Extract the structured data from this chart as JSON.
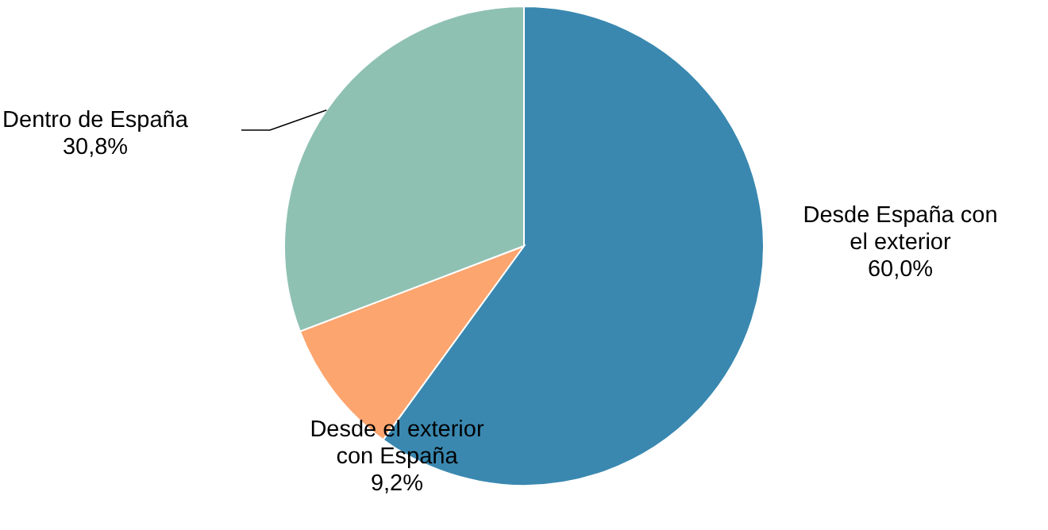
{
  "chart_data": {
    "type": "pie",
    "categories": [
      "Desde España con el exterior",
      "Desde el exterior con España",
      "Dentro de España"
    ],
    "values": [
      60.0,
      9.2,
      30.8
    ],
    "colors": [
      "#3a88b0",
      "#fca56f",
      "#8fc1b3"
    ],
    "value_labels": [
      "60,0%",
      "9,2%",
      "30,8%"
    ]
  }
}
